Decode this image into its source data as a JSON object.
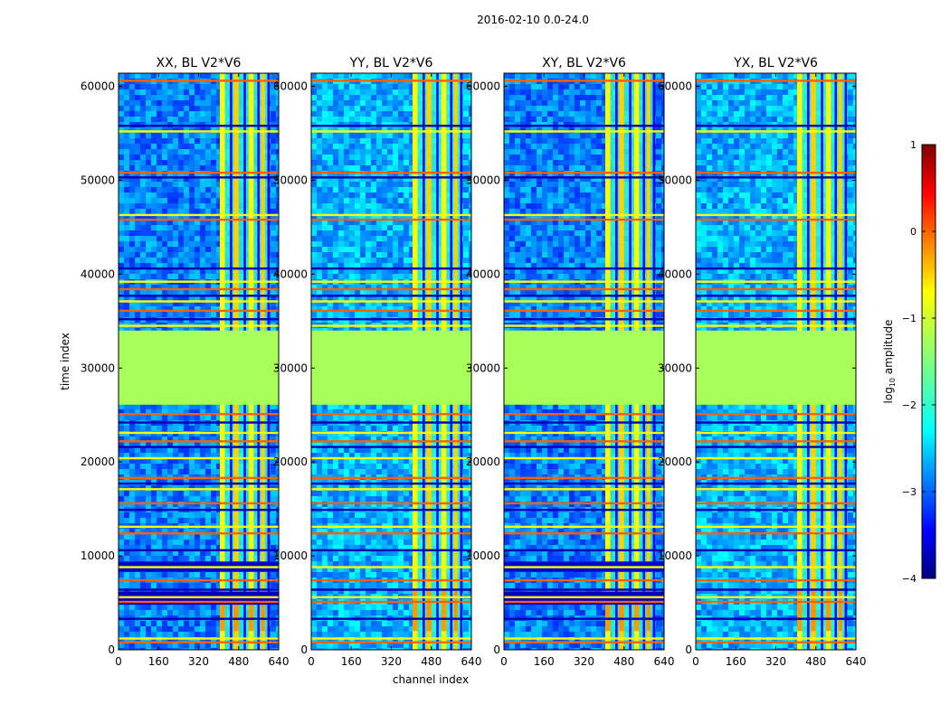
{
  "figure": {
    "suptitle": "2016-02-10 0.0-24.0"
  },
  "chart_data": {
    "type": "heatmap",
    "panels": [
      {
        "title": "XX, BL V2*V6",
        "panel_index": 0
      },
      {
        "title": "YY, BL V2*V6",
        "panel_index": 1
      },
      {
        "title": "XY, BL V2*V6",
        "panel_index": 2
      },
      {
        "title": "YX, BL V2*V6",
        "panel_index": 3
      }
    ],
    "xlabel": "channel index",
    "ylabel": "time index",
    "xlim": [
      0,
      640
    ],
    "ylim": [
      0,
      61400
    ],
    "x_ticks": [
      "0",
      "160",
      "320",
      "480",
      "640"
    ],
    "x_tick_values": [
      0,
      160,
      320,
      480,
      640
    ],
    "y_ticks": [
      "0",
      "10000",
      "20000",
      "30000",
      "40000",
      "50000",
      "60000"
    ],
    "y_tick_values": [
      0,
      10000,
      20000,
      30000,
      40000,
      50000,
      60000
    ],
    "colorbar": {
      "label_main": "log",
      "label_sub": "10",
      "label_tail": " amplitude",
      "range": [
        -4,
        1
      ],
      "ticks": [
        "1",
        "0",
        "−1",
        "−2",
        "−3",
        "−4"
      ],
      "tick_values": [
        1,
        0,
        -1,
        -2,
        -3,
        -4
      ],
      "colormap": "jet"
    },
    "flagged_time_range": [
      26100,
      34000
    ],
    "flagged_value": -1.3,
    "bright_channel_range": [
      405,
      600
    ],
    "bright_channel_bands": [
      [
        405,
        425
      ],
      [
        460,
        480
      ],
      [
        520,
        540
      ],
      [
        570,
        585
      ]
    ],
    "bright_block_time_range": [
      2000,
      8800
    ],
    "rfi_time_rows": [
      800,
      1200,
      3300,
      5100,
      5600,
      6400,
      7400,
      8800,
      10600,
      12400,
      13100,
      14900,
      15600,
      17100,
      17700,
      18300,
      20400,
      21600,
      22200,
      23100,
      24200,
      25100,
      34500,
      35200,
      36100,
      37100,
      37700,
      38400,
      39200,
      40600,
      45800,
      46300,
      50300,
      50800,
      55200,
      55800,
      60600
    ]
  }
}
